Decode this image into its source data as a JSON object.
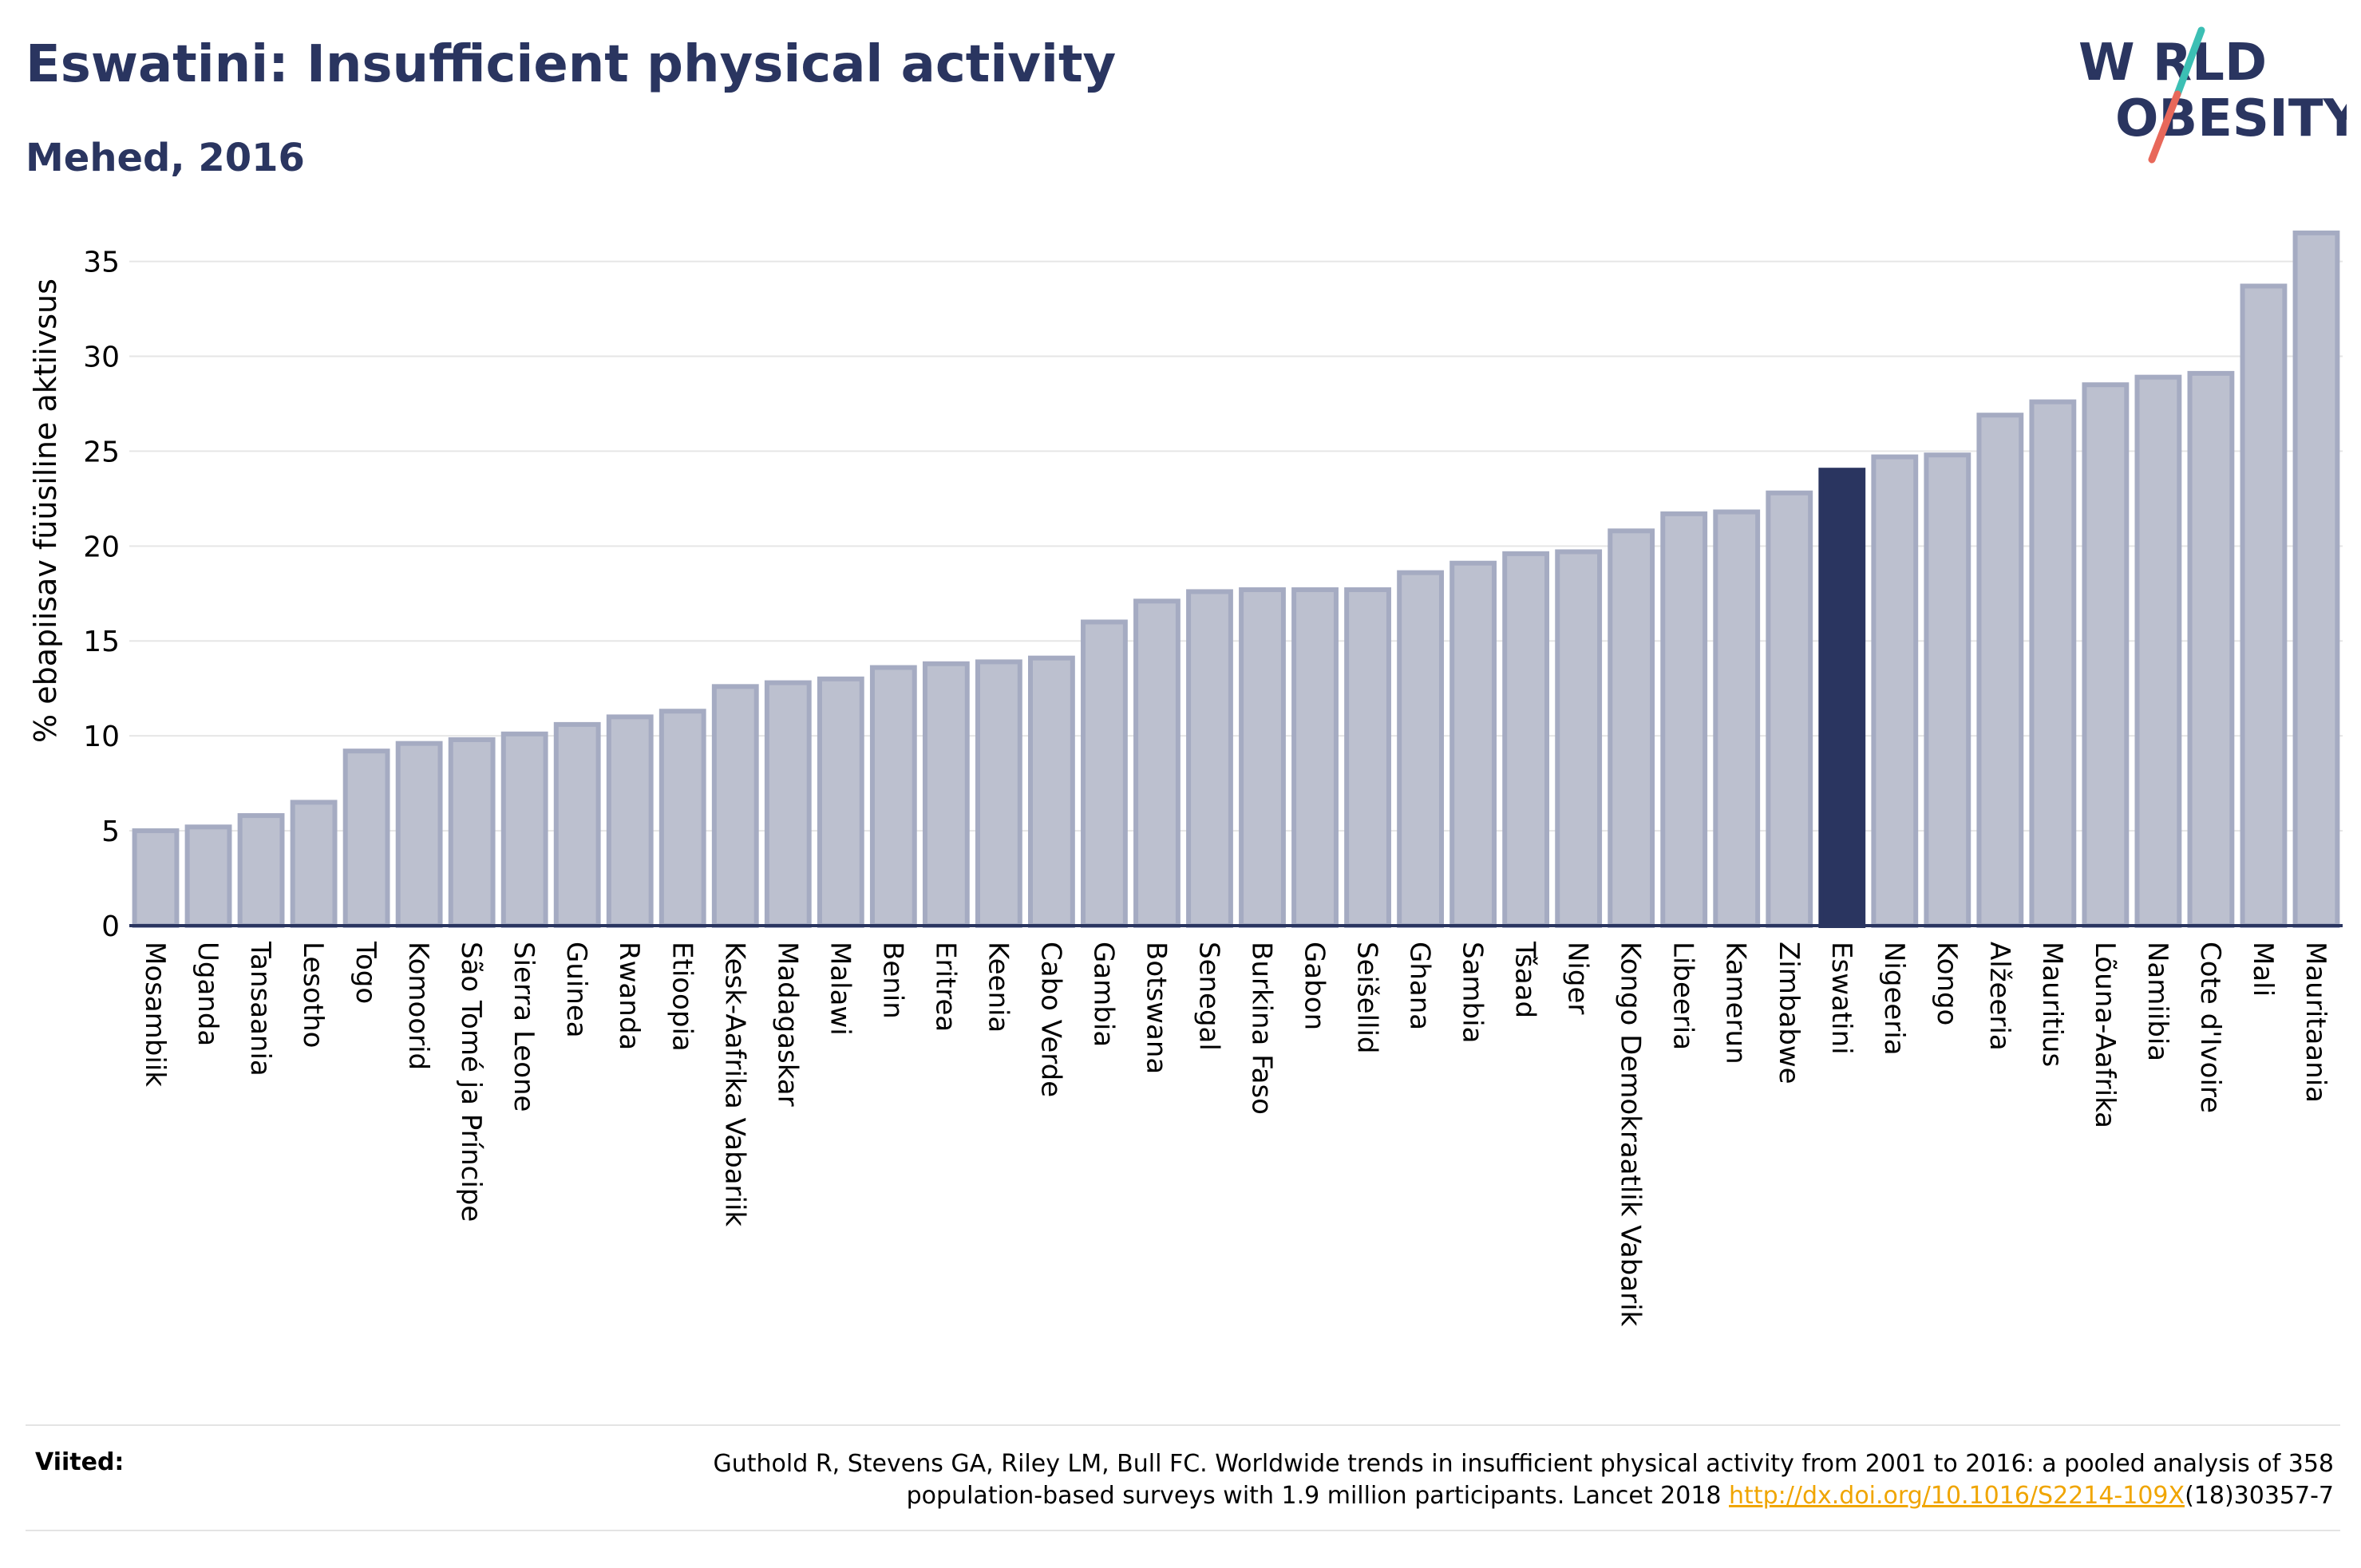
{
  "header": {
    "title": "Eswatini: Insufficient physical activity",
    "subtitle": "Mehed, 2016"
  },
  "logo": {
    "line1": "W RLD",
    "line2": "OBESITY",
    "text_color": "#2a3560",
    "slash_colors": [
      "#3cbfb4",
      "#e8685a"
    ]
  },
  "colors": {
    "bar": "#bcc0cf",
    "bar_edge": "#a5abc2",
    "highlight": "#2a3560",
    "axis": "#2a3560",
    "grid": "#e6e6e6"
  },
  "chart_data": {
    "type": "bar",
    "ylabel": "% ebapiisav füüsiline aktiivsus",
    "ylim": [
      0,
      37
    ],
    "yticks": [
      0,
      5,
      10,
      15,
      20,
      25,
      30,
      35
    ],
    "grid": true,
    "highlight": "Eswatini",
    "categories": [
      "Mosambiik",
      "Uganda",
      "Tansaania",
      "Lesotho",
      "Togo",
      "Komoorid",
      "São Tomé ja Príncipe",
      "Sierra Leone",
      "Guinea",
      "Rwanda",
      "Etioopia",
      "Kesk-Aafrika Vabariik",
      "Madagaskar",
      "Malawi",
      "Benin",
      "Eritrea",
      "Keenia",
      "Cabo Verde",
      "Gambia",
      "Botswana",
      "Senegal",
      "Burkina Faso",
      "Gabon",
      "Seišellid",
      "Ghana",
      "Sambia",
      "Tšaad",
      "Niger",
      "Kongo Demokraatlik Vabarik",
      "Libeeria",
      "Kamerun",
      "Zimbabwe",
      "Eswatini",
      "Nigeeria",
      "Kongo",
      "Alžeeria",
      "Mauritius",
      "Lõuna-Aafrika",
      "Namiibia",
      "Cote d'Ivoire",
      "Mali",
      "Mauritaania"
    ],
    "values": [
      5.0,
      5.2,
      5.8,
      6.5,
      9.2,
      9.6,
      9.8,
      10.1,
      10.6,
      11.0,
      11.3,
      12.6,
      12.8,
      13.0,
      13.6,
      13.8,
      13.9,
      14.1,
      16.0,
      17.1,
      17.6,
      17.7,
      17.7,
      17.7,
      18.6,
      19.1,
      19.6,
      19.7,
      20.8,
      21.7,
      21.8,
      22.8,
      24.0,
      24.7,
      24.8,
      26.9,
      27.6,
      28.5,
      28.9,
      29.1,
      33.7,
      36.5
    ]
  },
  "footer": {
    "sources_label": "Viited:",
    "sources_line1": "Guthold R, Stevens GA, Riley LM, Bull FC. Worldwide trends in insufficient physical activity from 2001 to 2016: a pooled analysis of 358",
    "sources_line2_prefix": "population-based surveys with 1.9 million participants. Lancet 2018 ",
    "sources_link": "http://dx.doi.org/10.1016/S2214-109X",
    "sources_line2_suffix": "(18)30357-7"
  }
}
